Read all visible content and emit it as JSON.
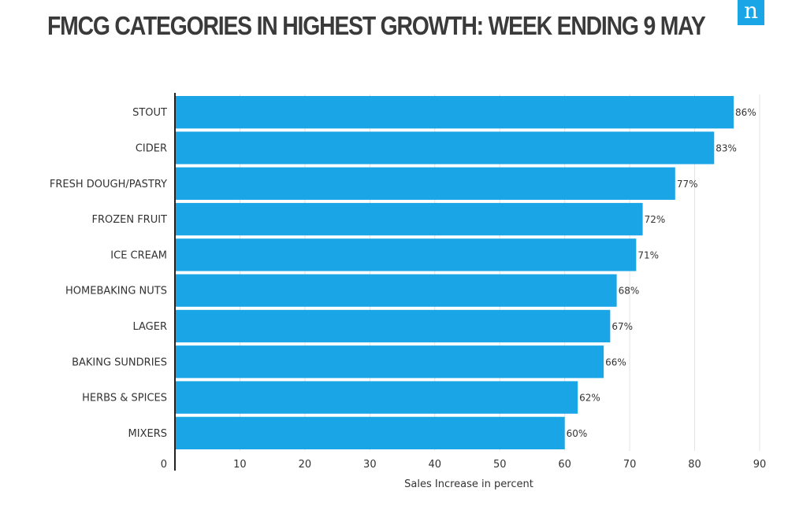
{
  "header": {
    "title": "FMCG CATEGORIES IN HIGHEST GROWTH: WEEK ENDING 9 MAY",
    "logo_letter": "n",
    "logo_name": "nielsen-logo-icon"
  },
  "colors": {
    "bar": "#1aa6e6",
    "grid": "#e3e3e3",
    "axis": "#222222",
    "text": "#333333"
  },
  "chart_data": {
    "type": "bar",
    "orientation": "horizontal",
    "title": "FMCG CATEGORIES IN HIGHEST GROWTH: WEEK ENDING 9 MAY",
    "categories": [
      "STOUT",
      "CIDER",
      "FRESH DOUGH/PASTRY",
      "FROZEN FRUIT",
      "ICE CREAM",
      "HOMEBAKING NUTS",
      "LAGER",
      "BAKING SUNDRIES",
      "HERBS & SPICES",
      "MIXERS"
    ],
    "values": [
      86,
      83,
      77,
      72,
      71,
      68,
      67,
      66,
      62,
      60
    ],
    "value_labels": [
      "86%",
      "83%",
      "77%",
      "72%",
      "71%",
      "68%",
      "67%",
      "66%",
      "62%",
      "60%"
    ],
    "xlabel": "Sales Increase in percent",
    "ylabel": "",
    "xlim": [
      0,
      90
    ],
    "xticks": [
      0,
      10,
      20,
      30,
      40,
      50,
      60,
      70,
      80,
      90
    ],
    "grid": true
  }
}
